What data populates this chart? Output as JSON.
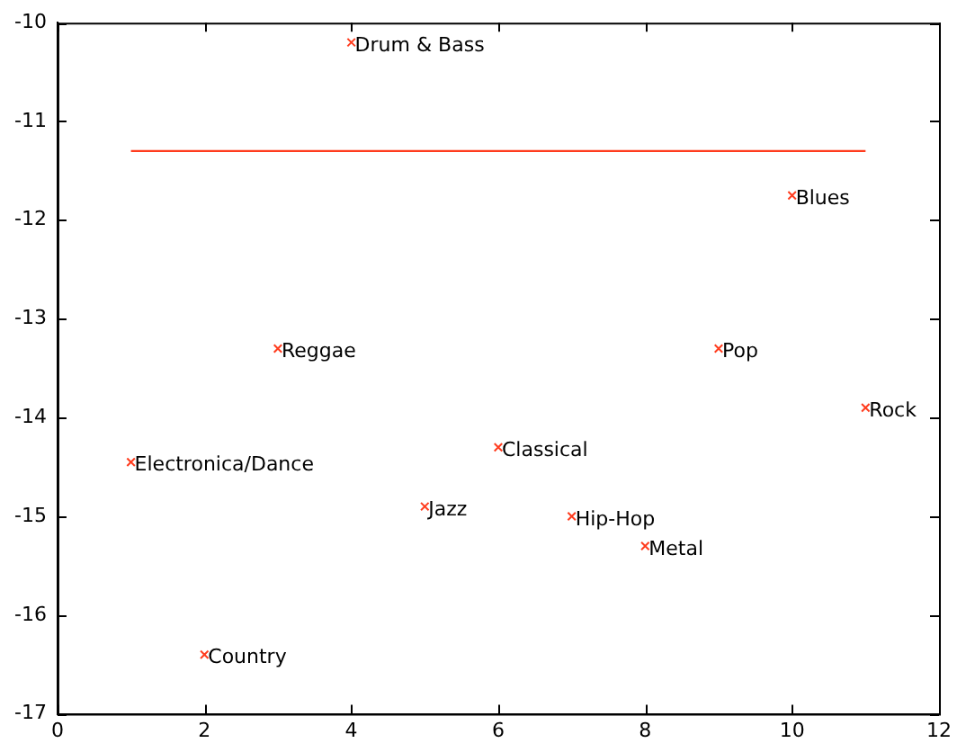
{
  "chart_data": {
    "type": "scatter",
    "grid": false,
    "legend": false,
    "series": [
      {
        "marker": "cross",
        "color": "#ff3c1e",
        "x": [
          4,
          10,
          3,
          9,
          11,
          1,
          6,
          5,
          7,
          8,
          2
        ],
        "values": [
          -10.2,
          -11.75,
          -13.3,
          -13.3,
          -13.9,
          -14.45,
          -14.3,
          -14.9,
          -15.0,
          -15.3,
          -16.4
        ]
      },
      {
        "type": "line",
        "marker": "none",
        "color": "#ff3c1e",
        "x": [
          1,
          11
        ],
        "values": [
          -11.3,
          -11.3
        ]
      }
    ],
    "annotations": [
      {
        "text": "Drum & Bass",
        "x": 4,
        "y": -10.2
      },
      {
        "text": "Blues",
        "x": 10,
        "y": -11.75
      },
      {
        "text": "Reggae",
        "x": 3,
        "y": -13.3
      },
      {
        "text": "Pop",
        "x": 9,
        "y": -13.3
      },
      {
        "text": "Rock",
        "x": 11,
        "y": -13.9
      },
      {
        "text": "Electronica/Dance",
        "x": 1,
        "y": -14.45
      },
      {
        "text": "Classical",
        "x": 6,
        "y": -14.3
      },
      {
        "text": "Jazz",
        "x": 5,
        "y": -14.9
      },
      {
        "text": "Hip-Hop",
        "x": 7,
        "y": -15.0
      },
      {
        "text": "Metal",
        "x": 8,
        "y": -15.3
      },
      {
        "text": "Country",
        "x": 2,
        "y": -16.4
      }
    ],
    "xlim": [
      0,
      12
    ],
    "xticks": [
      0,
      2,
      4,
      6,
      8,
      10,
      12
    ],
    "ylim": [
      -17,
      -10
    ],
    "yticks": [
      -17,
      -16,
      -15,
      -14,
      -13,
      -12,
      -11,
      -10
    ]
  }
}
